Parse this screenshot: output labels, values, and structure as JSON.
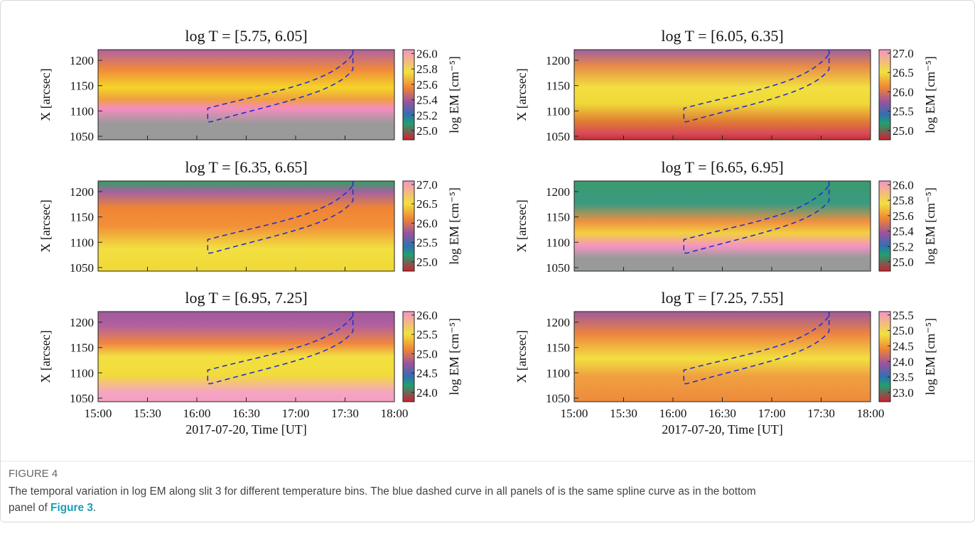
{
  "figure": {
    "y_label": "X [arcsec]",
    "x_label": "2017-07-20, Time [UT]",
    "cbar_label": "log EM  [cm⁻⁵]",
    "ylim": [
      1043,
      1221
    ],
    "yticks": [
      1050,
      1100,
      1150,
      1200
    ],
    "xticks": [
      "15:00",
      "15:30",
      "16:00",
      "16:30",
      "17:00",
      "17:30",
      "18:00"
    ],
    "panels": [
      {
        "title": "log T = [5.75, 6.05]",
        "clim": [
          24.88,
          26.05
        ],
        "cticks": [
          {
            "value": 25,
            "label": "25.0"
          },
          25.2,
          25.4,
          25.6,
          25.8,
          {
            "value": 26,
            "label": "26.0"
          }
        ]
      },
      {
        "title": "log T = [6.05, 6.35]",
        "clim": [
          24.76,
          27.09
        ],
        "cticks": [
          {
            "value": 25,
            "label": "25.0"
          },
          25.5,
          {
            "value": 26,
            "label": "26.0"
          },
          26.5,
          {
            "value": 27,
            "label": "27.0"
          }
        ]
      },
      {
        "title": "log T = [6.35, 6.65]",
        "clim": [
          24.76,
          27.09
        ],
        "cticks": [
          {
            "value": 25,
            "label": "25.0"
          },
          25.5,
          {
            "value": 26,
            "label": "26.0"
          },
          26.5,
          {
            "value": 27,
            "label": "27.0"
          }
        ]
      },
      {
        "title": "log T = [6.65, 6.95]",
        "clim": [
          24.88,
          26.05
        ],
        "cticks": [
          {
            "value": 25,
            "label": "25.0"
          },
          25.2,
          25.4,
          25.6,
          25.8,
          {
            "value": 26,
            "label": "26.0"
          }
        ]
      },
      {
        "title": "log T = [6.95, 7.25]",
        "clim": [
          23.76,
          26.09
        ],
        "cticks": [
          {
            "value": 24,
            "label": "24.0"
          },
          24.5,
          {
            "value": 25,
            "label": "25.0"
          },
          25.5,
          {
            "value": 26,
            "label": "26.0"
          }
        ]
      },
      {
        "title": "log T = [7.25, 7.55]",
        "clim": [
          22.7,
          25.61
        ],
        "cticks": [
          {
            "value": 23,
            "label": "23.0"
          },
          23.5,
          {
            "value": 24,
            "label": "24.0"
          },
          24.5,
          {
            "value": 25,
            "label": "25.0"
          },
          25.5
        ]
      }
    ]
  },
  "caption": {
    "label": "FIGURE 4",
    "line1": "The temporal variation in log EM along slit 3 for different temperature bins. The blue dashed curve in all panels of is the same spline curve as in the bottom",
    "line2": "panel of ",
    "link": "Figure 3",
    "end": "."
  }
}
